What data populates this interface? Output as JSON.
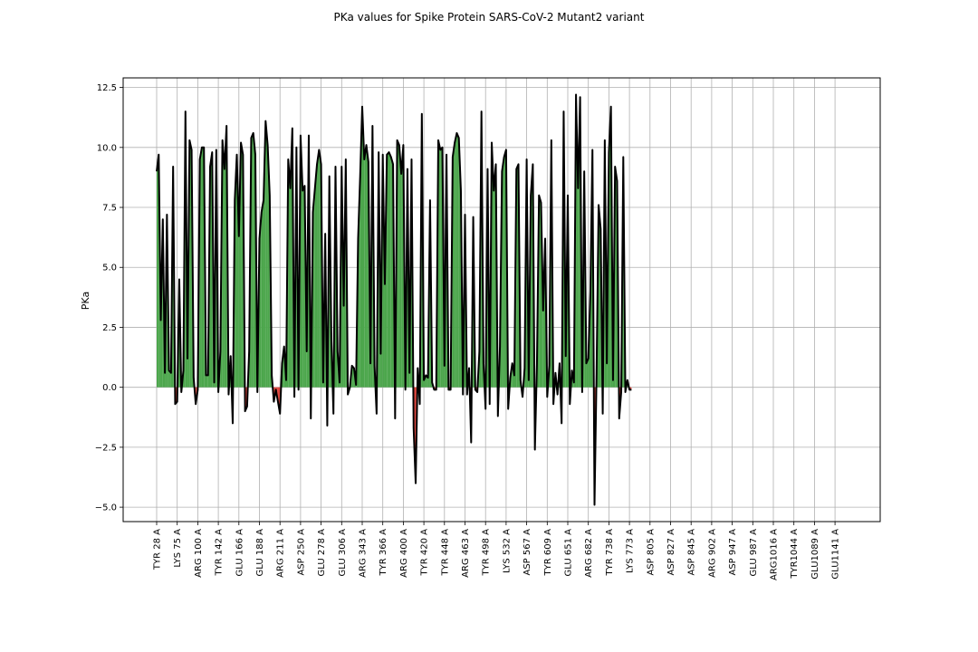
{
  "chart_data": {
    "type": "area",
    "title": "PKa values for Spike Protein SARS-CoV-2 Mutant2 variant",
    "xlabel": "",
    "ylabel": "PKa",
    "ylim": [
      -5.6,
      12.9
    ],
    "yticks": [
      -5.0,
      -2.5,
      0.0,
      2.5,
      5.0,
      7.5,
      10.0,
      12.5
    ],
    "ytick_labels": [
      "−5.0",
      "−2.5",
      "0.0",
      "2.5",
      "5.0",
      "7.5",
      "10.0",
      "12.5"
    ],
    "grid": true,
    "x_tick_labels": [
      "TYR  28 A",
      "LYS  75 A",
      "ARG 100 A",
      "TYR 142 A",
      "GLU 166 A",
      "GLU 188 A",
      "ARG 211 A",
      "ASP 250 A",
      "GLU 278 A",
      "GLU 306 A",
      "ARG 343 A",
      "TYR 366 A",
      "ARG 400 A",
      "TYR 420 A",
      "TYR 448 A",
      "ARG 463 A",
      "TYR 498 A",
      "LYS 532 A",
      "ASP 567 A",
      "TYR 609 A",
      "GLU 651 A",
      "ARG 682 A",
      "TYR 738 A",
      "LYS 773 A",
      "ASP 805 A",
      "ASP 827 A",
      "ASP 845 A",
      "ARG 902 A",
      "ASP 947 A",
      "GLU 987 A",
      "ARG1016 A",
      "TYR1044 A",
      "GLU1089 A",
      "GLU1141 A"
    ],
    "points_per_tick": 10,
    "positive_fill": "#4ca64c",
    "negative_fill": "#e0473f",
    "line_color": "#000000",
    "series": [
      {
        "values": [
          9.0,
          9.7,
          2.8,
          7.0,
          0.6,
          7.2,
          0.7,
          0.6,
          9.2,
          -0.7,
          -0.6,
          4.5,
          -0.2,
          0.7,
          11.5,
          1.2,
          10.3,
          9.9,
          0.4,
          -0.7,
          -0.1,
          9.5,
          10.0,
          10.0,
          0.5,
          0.5,
          9.2,
          9.8,
          0.2,
          9.9,
          -0.2,
          1.5,
          10.3,
          9.1,
          10.9,
          -0.3,
          1.3,
          -1.5,
          7.8,
          9.7,
          6.3,
          10.2,
          9.7,
          -1.0,
          -0.8,
          1.5,
          10.4,
          10.6,
          9.7,
          -0.2,
          6.2,
          7.3,
          7.8,
          11.1,
          10.1,
          8.0,
          0.5,
          -0.6,
          -0.1,
          -0.6,
          -1.1,
          1.0,
          1.7,
          0.3,
          9.5,
          8.3,
          10.8,
          -0.4,
          10.0,
          -0.1,
          10.5,
          8.2,
          8.4,
          1.5,
          10.5,
          -1.3,
          7.3,
          8.3,
          9.3,
          9.9,
          9.3,
          0.2,
          6.4,
          -1.6,
          8.8,
          2.0,
          -1.1,
          9.2,
          1.5,
          0.2,
          9.2,
          3.4,
          9.5,
          -0.3,
          0.0,
          0.9,
          0.8,
          0.1,
          6.2,
          8.8,
          11.7,
          9.5,
          10.1,
          9.4,
          1.0,
          10.9,
          0.9,
          -1.1,
          9.8,
          1.4,
          9.7,
          4.3,
          9.7,
          9.8,
          9.6,
          9.3,
          -1.3,
          10.3,
          10.1,
          8.9,
          10.1,
          -0.1,
          9.1,
          0.6,
          9.5,
          -1.7,
          -4.0,
          0.8,
          -0.7,
          11.4,
          0.3,
          0.5,
          0.4,
          7.8,
          0.2,
          -0.1,
          -0.1,
          10.3,
          9.9,
          10.0,
          0.9,
          9.7,
          -0.1,
          -0.1,
          9.6,
          10.2,
          10.6,
          10.4,
          8.2,
          -0.3,
          7.2,
          -0.3,
          0.8,
          -2.3,
          7.1,
          -0.1,
          -0.2,
          1.5,
          11.5,
          1.0,
          -0.9,
          9.1,
          -0.7,
          10.2,
          8.2,
          9.3,
          -1.2,
          1.7,
          9.0,
          9.6,
          9.9,
          -0.9,
          0.4,
          1.0,
          0.5,
          9.1,
          9.3,
          0.3,
          -0.4,
          0.8,
          9.5,
          0.3,
          8.0,
          9.3,
          -2.6,
          1.0,
          8.0,
          7.7,
          3.2,
          6.2,
          -0.4,
          0.9,
          10.3,
          -0.7,
          0.6,
          -0.3,
          1.0,
          -1.5,
          11.5,
          1.3,
          8.0,
          -0.7,
          0.7,
          0.2,
          12.2,
          8.3,
          12.1,
          -0.2,
          9.0,
          1.0,
          1.2,
          4.0,
          9.9,
          -4.9,
          0.6,
          7.6,
          6.6,
          -1.1,
          10.3,
          1.0,
          9.8,
          11.7,
          0.3,
          9.2,
          8.6,
          -1.3,
          -0.2,
          9.6,
          -0.2,
          0.3,
          -0.1,
          -0.1
        ]
      }
    ]
  }
}
